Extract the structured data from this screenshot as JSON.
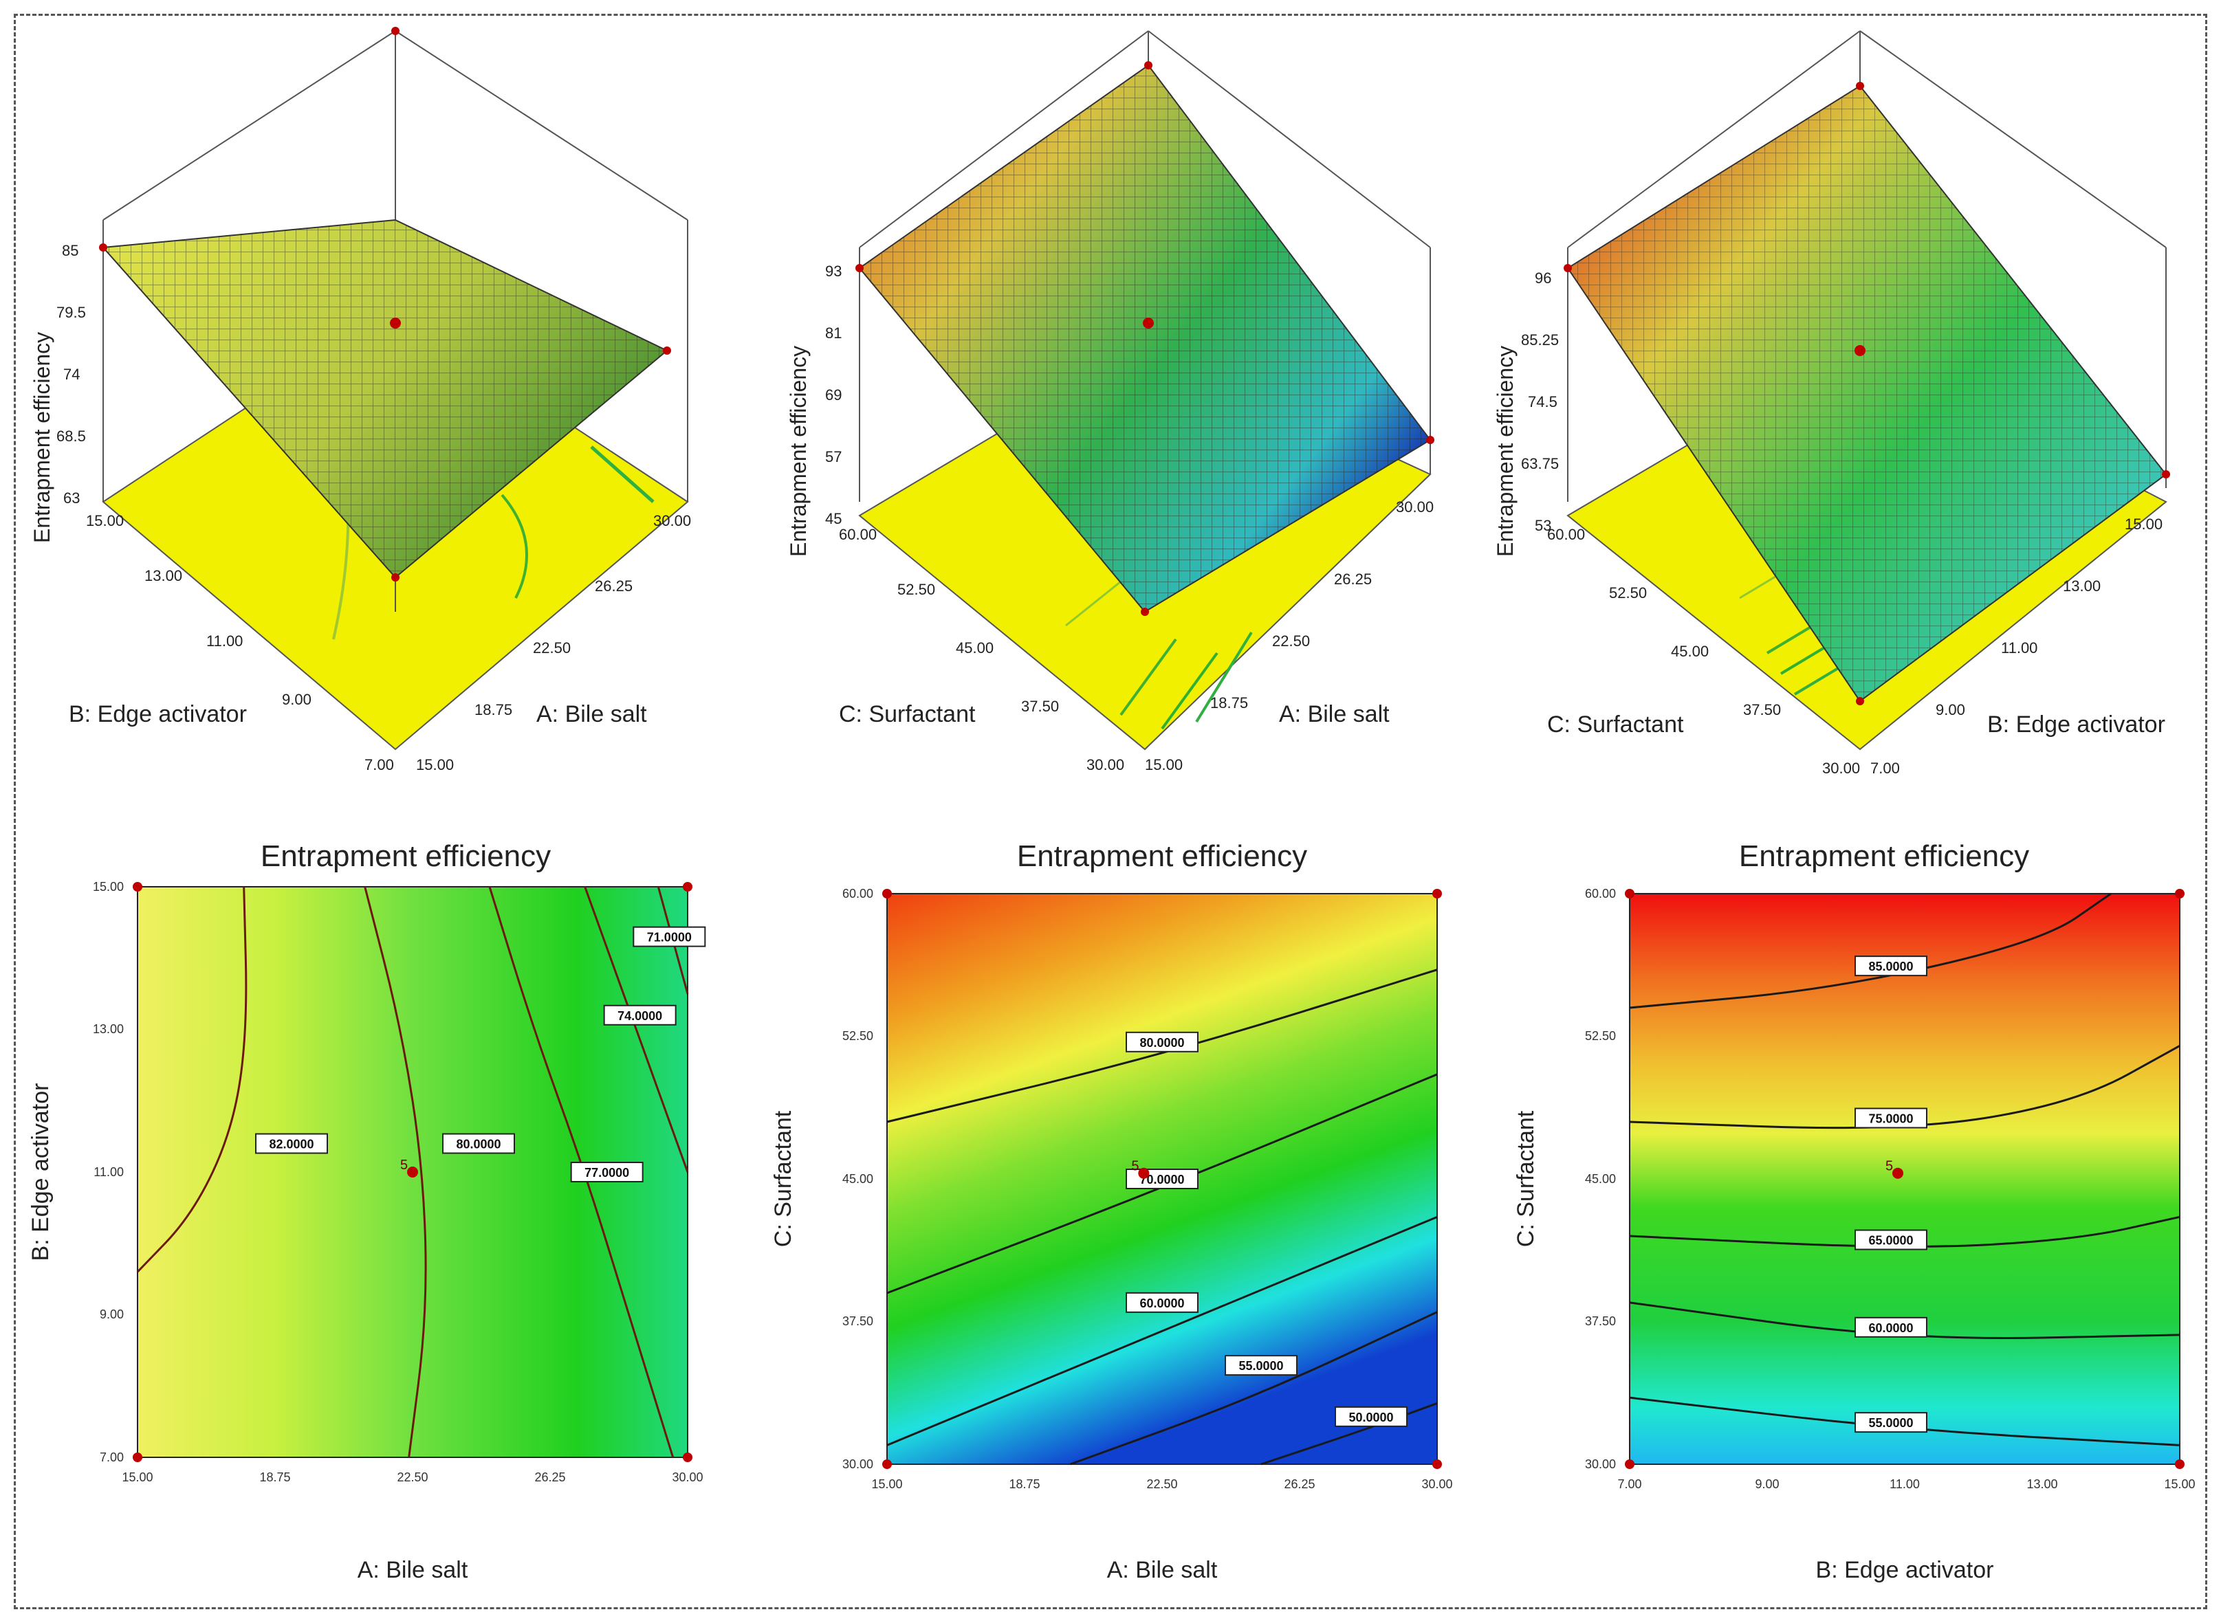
{
  "figure": {
    "response": "Entrapment efficiency",
    "factors": {
      "A": "A: Bile salt",
      "B": "B: Edge activator",
      "C": "C: Surfactant"
    }
  },
  "chart_data": [
    {
      "type": "surface3d",
      "id": "surf1",
      "zlabel": "Entrapment efficiency",
      "xlabel": "A: Bile salt",
      "ylabel": "B: Edge activator",
      "x_ticks": [
        "15.00",
        "18.75",
        "22.50",
        "26.25",
        "30.00"
      ],
      "y_ticks": [
        "7.00",
        "9.00",
        "11.00",
        "13.00",
        "15.00"
      ],
      "z_ticks": [
        "85",
        "79.5",
        "74",
        "68.5",
        "63"
      ],
      "corner_values": {
        "lowA_lowB": 78,
        "highA_lowB": 72,
        "lowA_highB": 85,
        "highA_highB": 74
      },
      "colors": [
        "#e8e84a",
        "#c8d040",
        "#3a8a30"
      ]
    },
    {
      "type": "surface3d",
      "id": "surf2",
      "zlabel": "Entrapment efficiency",
      "xlabel": "A: Bile salt",
      "ylabel": "C: Surfactant",
      "x_ticks": [
        "15.00",
        "18.75",
        "22.50",
        "26.25",
        "30.00"
      ],
      "y_ticks": [
        "30.00",
        "37.50",
        "45.00",
        "52.50",
        "60.00"
      ],
      "z_ticks": [
        "93",
        "81",
        "69",
        "57",
        "45"
      ],
      "corner_values": {
        "lowA_lowC": 60,
        "highA_lowC": 45,
        "lowA_highC": 93,
        "highA_highC": 85
      },
      "colors": [
        "#f08020",
        "#c8d040",
        "#20b060",
        "#1030c0"
      ]
    },
    {
      "type": "surface3d",
      "id": "surf3",
      "zlabel": "Entrapment efficiency",
      "xlabel": "B: Edge activator",
      "ylabel": "C: Surfactant",
      "x_ticks": [
        "7.00",
        "9.00",
        "11.00",
        "13.00",
        "15.00"
      ],
      "y_ticks": [
        "30.00",
        "37.50",
        "45.00",
        "52.50",
        "60.00"
      ],
      "z_ticks": [
        "96",
        "85.25",
        "74.5",
        "63.75",
        "53"
      ],
      "corner_values": {
        "lowB_lowC": 53,
        "highB_lowC": 56,
        "lowB_highC": 96,
        "highB_highC": 93
      },
      "colors": [
        "#e83020",
        "#d0d040",
        "#30c060",
        "#40c8e8"
      ]
    },
    {
      "type": "contour",
      "id": "cont1",
      "title": "Entrapment efficiency",
      "xlabel": "A: Bile salt",
      "ylabel": "B: Edge activator",
      "x_ticks": [
        "15.00",
        "18.75",
        "22.50",
        "26.25",
        "30.00"
      ],
      "y_ticks": [
        "7.00",
        "9.00",
        "11.00",
        "13.00",
        "15.00"
      ],
      "xlim": [
        15,
        30
      ],
      "ylim": [
        7,
        15
      ],
      "contours": [
        {
          "label": "82.0000",
          "points": [
            [
              15.0,
              9.6
            ],
            [
              16.5,
              10.4
            ],
            [
              17.6,
              11.6
            ],
            [
              18.0,
              13.0
            ],
            [
              17.9,
              15.0
            ]
          ]
        },
        {
          "label": "80.0000",
          "points": [
            [
              22.4,
              7.0
            ],
            [
              22.9,
              9.0
            ],
            [
              22.8,
              11.0
            ],
            [
              22.2,
              13.0
            ],
            [
              21.2,
              15.0
            ]
          ]
        },
        {
          "label": "77.0000",
          "points": [
            [
              29.6,
              7.0
            ],
            [
              28.4,
              9.0
            ],
            [
              27.2,
              11.0
            ],
            [
              25.8,
              13.0
            ],
            [
              24.6,
              15.0
            ]
          ]
        },
        {
          "label": "74.0000",
          "points": [
            [
              30.0,
              11.0
            ],
            [
              28.6,
              13.0
            ],
            [
              27.2,
              15.0
            ]
          ]
        },
        {
          "label": "71.0000",
          "points": [
            [
              30.0,
              13.5
            ],
            [
              29.2,
              15.0
            ]
          ]
        }
      ],
      "label_positions": [
        [
          19.2,
          11.4
        ],
        [
          24.3,
          11.4
        ],
        [
          27.8,
          11.0
        ],
        [
          28.7,
          13.2
        ],
        [
          29.5,
          14.3
        ]
      ],
      "design_point": {
        "label": "5",
        "x": 22.5,
        "y": 11.0
      }
    },
    {
      "type": "contour",
      "id": "cont2",
      "title": "Entrapment efficiency",
      "xlabel": "A: Bile salt",
      "ylabel": "C: Surfactant",
      "x_ticks": [
        "15.00",
        "18.75",
        "22.50",
        "26.25",
        "30.00"
      ],
      "y_ticks": [
        "30.00",
        "37.50",
        "45.00",
        "52.50",
        "60.00"
      ],
      "xlim": [
        15,
        30
      ],
      "ylim": [
        30,
        60
      ],
      "contours": [
        {
          "label": "80.0000",
          "points": [
            [
              15.0,
              48.0
            ],
            [
              22.5,
              51.5
            ],
            [
              30.0,
              56.0
            ]
          ]
        },
        {
          "label": "70.0000",
          "points": [
            [
              15.0,
              39.0
            ],
            [
              22.5,
              44.5
            ],
            [
              30.0,
              50.5
            ]
          ]
        },
        {
          "label": "60.0000",
          "points": [
            [
              15.0,
              31.0
            ],
            [
              22.5,
              37.0
            ],
            [
              30.0,
              43.0
            ]
          ]
        },
        {
          "label": "55.0000",
          "points": [
            [
              20.0,
              30.0
            ],
            [
              25.0,
              33.5
            ],
            [
              30.0,
              38.0
            ]
          ]
        },
        {
          "label": "50.0000",
          "points": [
            [
              25.2,
              30.0
            ],
            [
              28.0,
              31.8
            ],
            [
              30.0,
              33.2
            ]
          ]
        }
      ],
      "label_positions": [
        [
          22.5,
          52.2
        ],
        [
          22.5,
          45.0
        ],
        [
          22.5,
          38.5
        ],
        [
          25.2,
          35.2
        ],
        [
          28.2,
          32.5
        ]
      ],
      "design_point": {
        "label": "5",
        "x": 22.0,
        "y": 45.3
      }
    },
    {
      "type": "contour",
      "id": "cont3",
      "title": "Entrapment efficiency",
      "xlabel": "B: Edge activator",
      "ylabel": "C: Surfactant",
      "x_ticks": [
        "7.00",
        "9.00",
        "11.00",
        "13.00",
        "15.00"
      ],
      "y_ticks": [
        "30.00",
        "37.50",
        "45.00",
        "52.50",
        "60.00"
      ],
      "xlim": [
        7,
        15
      ],
      "ylim": [
        30,
        60
      ],
      "contours": [
        {
          "label": "85.0000",
          "points": [
            [
              7.0,
              54.0
            ],
            [
              10.0,
              55.0
            ],
            [
              13.0,
              57.5
            ],
            [
              14.0,
              60.0
            ]
          ]
        },
        {
          "label": "75.0000",
          "points": [
            [
              7.0,
              48.0
            ],
            [
              11.0,
              47.5
            ],
            [
              13.5,
              49.0
            ],
            [
              15.0,
              52.0
            ]
          ]
        },
        {
          "label": "65.0000",
          "points": [
            [
              7.0,
              42.0
            ],
            [
              11.0,
              41.3
            ],
            [
              13.5,
              41.8
            ],
            [
              15.0,
              43.0
            ]
          ]
        },
        {
          "label": "60.0000",
          "points": [
            [
              7.0,
              38.5
            ],
            [
              11.0,
              36.5
            ],
            [
              15.0,
              36.8
            ]
          ]
        },
        {
          "label": "55.0000",
          "points": [
            [
              7.0,
              33.5
            ],
            [
              11.0,
              31.8
            ],
            [
              15.0,
              31.0
            ]
          ]
        }
      ],
      "label_positions": [
        [
          10.8,
          56.2
        ],
        [
          10.8,
          48.2
        ],
        [
          10.8,
          41.8
        ],
        [
          10.8,
          37.2
        ],
        [
          10.8,
          32.2
        ]
      ],
      "design_point": {
        "label": "5",
        "x": 10.9,
        "y": 45.3
      }
    }
  ]
}
